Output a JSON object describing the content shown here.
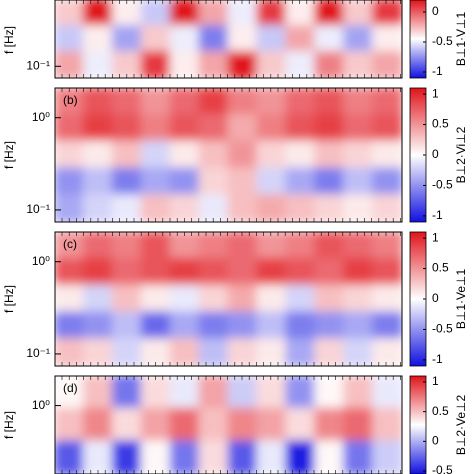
{
  "chart_data": [
    {
      "type": "heatmap",
      "ylabel": "f [Hz]",
      "colorbar_label": "B⊥1·V⊥1",
      "log_y": true,
      "ylim": [
        0.074,
        0.55
      ],
      "yticks": [
        {
          "value": 0.1,
          "label": "10⁻¹"
        }
      ],
      "clim": [
        -1.1,
        0.2
      ],
      "cticks": [
        -1,
        -0.5,
        0
      ],
      "colormap": [
        "#1010e0",
        "#ffffff",
        "#e0141c"
      ],
      "z": [
        [
          -0.3,
          0.2,
          -0.4,
          -0.6,
          0.3,
          -0.2,
          -0.5,
          0.1,
          -0.4,
          0.2,
          -0.3,
          0.1
        ],
        [
          -0.6,
          -0.4,
          -0.7,
          -0.3,
          -0.5,
          -0.8,
          -0.4,
          -0.6,
          -0.2,
          -0.5,
          -0.7,
          -0.4
        ],
        [
          -0.2,
          -0.5,
          -0.3,
          0.1,
          -0.4,
          -0.2,
          0.2,
          -0.3,
          -0.5,
          -0.1,
          -0.3,
          -0.2
        ]
      ]
    },
    {
      "type": "heatmap",
      "panel_label": "(b)",
      "ylabel": "f [Hz]",
      "colorbar_label": "B⊥2·Vi⊥2",
      "log_y": true,
      "ylim": [
        0.074,
        2.1
      ],
      "yticks": [
        {
          "value": 1,
          "label": "10⁰"
        },
        {
          "value": 0.1,
          "label": "10⁻¹"
        }
      ],
      "clim": [
        -1.1,
        1.1
      ],
      "cticks": [
        1,
        0.5,
        0,
        -0.5,
        -1
      ],
      "colormap": [
        "#1010e0",
        "#ffffff",
        "#e0141c"
      ],
      "z": [
        [
          0.6,
          0.8,
          0.7,
          0.5,
          0.7,
          0.9,
          0.6,
          0.5,
          0.7,
          0.8,
          0.6,
          0.7
        ],
        [
          0.7,
          0.9,
          0.8,
          0.6,
          0.8,
          0.7,
          0.4,
          0.6,
          0.8,
          0.9,
          0.7,
          0.8
        ],
        [
          0.2,
          0.1,
          0.3,
          -0.2,
          0.1,
          0.3,
          0.5,
          0.2,
          0.1,
          0.3,
          0.2,
          0.1
        ],
        [
          -0.5,
          -0.3,
          -0.6,
          -0.4,
          -0.5,
          0.2,
          0.3,
          -0.2,
          -0.4,
          -0.6,
          -0.3,
          -0.5
        ],
        [
          -0.4,
          -0.2,
          -0.1,
          0.3,
          0.2,
          -0.1,
          0.3,
          0.4,
          0.3,
          0.2,
          0.1,
          0.2
        ]
      ]
    },
    {
      "type": "heatmap",
      "panel_label": "(c)",
      "ylabel": "f [Hz]",
      "colorbar_label": "B⊥1·Ve⊥1",
      "log_y": true,
      "ylim": [
        0.074,
        2.1
      ],
      "yticks": [
        {
          "value": 1,
          "label": "10⁰"
        },
        {
          "value": 0.1,
          "label": "10⁻¹"
        }
      ],
      "clim": [
        -1.1,
        1.1
      ],
      "cticks": [
        1,
        0.5,
        0,
        -0.5,
        -1
      ],
      "colormap": [
        "#1010e0",
        "#ffffff",
        "#e0141c"
      ],
      "z": [
        [
          0.5,
          0.7,
          0.6,
          0.8,
          0.5,
          0.6,
          0.7,
          0.5,
          0.6,
          0.8,
          0.7,
          0.6
        ],
        [
          0.8,
          0.9,
          0.7,
          0.8,
          0.9,
          0.8,
          0.7,
          0.9,
          0.8,
          0.7,
          0.9,
          0.8
        ],
        [
          0.1,
          -0.2,
          0.3,
          0.1,
          -0.1,
          0.2,
          0.4,
          0.1,
          -0.2,
          0.3,
          0.2,
          0.1
        ],
        [
          -0.6,
          -0.5,
          -0.3,
          -0.7,
          -0.4,
          -0.6,
          -0.5,
          -0.3,
          -0.6,
          -0.5,
          -0.4,
          -0.6
        ],
        [
          0.3,
          0.2,
          -0.2,
          0.1,
          0.3,
          -0.3,
          0.2,
          0.1,
          -0.4,
          0.2,
          -0.2,
          0.1
        ]
      ]
    },
    {
      "type": "heatmap",
      "panel_label": "(d)",
      "ylabel": "f [Hz]",
      "colorbar_label": "B⊥2·Ve⊥2",
      "log_y": true,
      "ylim": [
        0.18,
        2.1
      ],
      "yticks": [
        {
          "value": 1,
          "label": "10⁰"
        }
      ],
      "clim": [
        -0.55,
        1.1
      ],
      "cticks": [
        1,
        0.5,
        0,
        -0.5
      ],
      "colormap": [
        "#1010e0",
        "#ffffff",
        "#e0141c"
      ],
      "z": [
        [
          0.3,
          0.5,
          -0.2,
          0.4,
          0.2,
          0.6,
          0.1,
          0.4,
          -0.1,
          0.3,
          0.5,
          0.2
        ],
        [
          0.5,
          0.7,
          0.4,
          0.6,
          0.8,
          0.5,
          0.7,
          0.6,
          0.4,
          0.7,
          0.8,
          0.5
        ],
        [
          -0.3,
          0.2,
          -0.4,
          0.3,
          -0.2,
          0.4,
          -0.3,
          0.2,
          -0.5,
          0.3,
          -0.2,
          0.1
        ]
      ]
    }
  ]
}
